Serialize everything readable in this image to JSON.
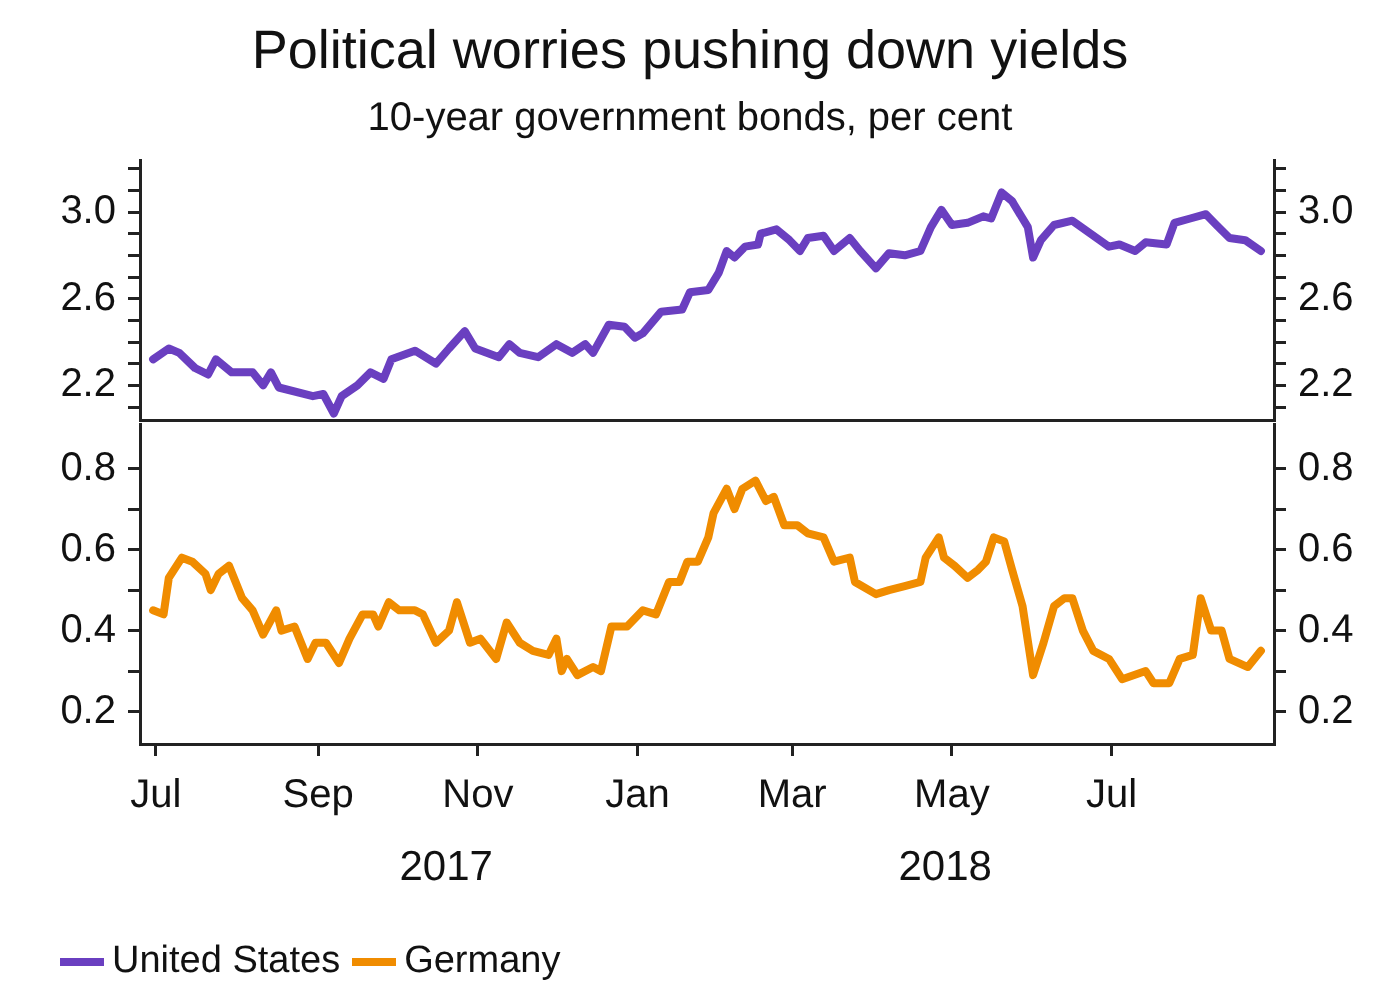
{
  "chart_data": [
    {
      "type": "line",
      "title": "Political worries pushing down yields",
      "subtitle": "10-year government bonds, per cent",
      "xlim": [
        "2017-06-25",
        "2018-09-01"
      ],
      "ylim": [
        2.04,
        3.24
      ],
      "y2lim": [
        2.04,
        3.24
      ],
      "tick_labels": "y",
      "legend": "bottom",
      "yticks": [
        {
          "value": 2.1,
          "label": null
        },
        {
          "value": 2.2,
          "label": "2.2"
        },
        {
          "value": 2.3,
          "label": null
        },
        {
          "value": 2.4,
          "label": null
        },
        {
          "value": 2.5,
          "label": null
        },
        {
          "value": 2.6,
          "label": "2.6"
        },
        {
          "value": 2.7,
          "label": null
        },
        {
          "value": 2.8,
          "label": null
        },
        {
          "value": 2.9,
          "label": null
        },
        {
          "value": 3,
          "label": "3.0"
        },
        {
          "value": 3.1,
          "label": null
        },
        {
          "value": 3.2,
          "label": null
        }
      ],
      "y2ticks": [
        {
          "value": 2.1,
          "label": null
        },
        {
          "value": 2.2,
          "label": "2.2"
        },
        {
          "value": 2.3,
          "label": null
        },
        {
          "value": 2.4,
          "label": null
        },
        {
          "value": 2.5,
          "label": null
        },
        {
          "value": 2.6,
          "label": "2.6"
        },
        {
          "value": 2.7,
          "label": null
        },
        {
          "value": 2.8,
          "label": null
        },
        {
          "value": 2.9,
          "label": null
        },
        {
          "value": 3,
          "label": "3.0"
        },
        {
          "value": 3.1,
          "label": null
        },
        {
          "value": 3.2,
          "label": null
        }
      ],
      "series": [
        {
          "name": "United States",
          "color": "#6a3fc0",
          "x": [
            "2017-06-30",
            "2017-07-06",
            "2017-07-10",
            "2017-07-16",
            "2017-07-21",
            "2017-07-24",
            "2017-07-30",
            "2017-08-07",
            "2017-08-11",
            "2017-08-14",
            "2017-08-17",
            "2017-08-30",
            "2017-09-03",
            "2017-09-07",
            "2017-09-10",
            "2017-09-16",
            "2017-09-21",
            "2017-09-26",
            "2017-09-29",
            "2017-10-08",
            "2017-10-16",
            "2017-10-21",
            "2017-10-27",
            "2017-10-31",
            "2017-11-09",
            "2017-11-13",
            "2017-11-17",
            "2017-11-24",
            "2017-12-01",
            "2017-12-07",
            "2017-12-12",
            "2017-12-15",
            "2017-12-21",
            "2017-12-27",
            "2017-12-31",
            "2018-01-03",
            "2018-01-10",
            "2018-01-18",
            "2018-01-21",
            "2018-01-28",
            "2018-02-01",
            "2018-02-04",
            "2018-02-07",
            "2018-02-11",
            "2018-02-16",
            "2018-02-17",
            "2018-02-23",
            "2018-02-28",
            "2018-03-04",
            "2018-03-07",
            "2018-03-13",
            "2018-03-17",
            "2018-03-23",
            "2018-03-27",
            "2018-04-02",
            "2018-04-07",
            "2018-04-13",
            "2018-04-19",
            "2018-04-23",
            "2018-04-27",
            "2018-05-01",
            "2018-05-07",
            "2018-05-13",
            "2018-05-16",
            "2018-05-20",
            "2018-05-24",
            "2018-05-30",
            "2018-06-01",
            "2018-06-04",
            "2018-06-09",
            "2018-06-16",
            "2018-06-23",
            "2018-06-30",
            "2018-07-04",
            "2018-07-10",
            "2018-07-14",
            "2018-07-22",
            "2018-07-25",
            "2018-07-31",
            "2018-08-06",
            "2018-08-10",
            "2018-08-15",
            "2018-08-21",
            "2018-08-27"
          ],
          "values": [
            2.32,
            2.37,
            2.35,
            2.28,
            2.25,
            2.32,
            2.26,
            2.26,
            2.2,
            2.26,
            2.19,
            2.15,
            2.16,
            2.07,
            2.15,
            2.2,
            2.26,
            2.23,
            2.32,
            2.36,
            2.3,
            2.37,
            2.45,
            2.37,
            2.33,
            2.39,
            2.35,
            2.33,
            2.39,
            2.35,
            2.39,
            2.35,
            2.48,
            2.47,
            2.42,
            2.44,
            2.54,
            2.55,
            2.63,
            2.64,
            2.72,
            2.82,
            2.79,
            2.84,
            2.85,
            2.9,
            2.92,
            2.87,
            2.82,
            2.88,
            2.89,
            2.82,
            2.88,
            2.82,
            2.74,
            2.81,
            2.8,
            2.82,
            2.93,
            3.01,
            2.94,
            2.95,
            2.98,
            2.97,
            3.09,
            3.05,
            2.93,
            2.79,
            2.87,
            2.94,
            2.96,
            2.9,
            2.84,
            2.85,
            2.82,
            2.86,
            2.85,
            2.95,
            2.97,
            2.99,
            2.94,
            2.88,
            2.87,
            2.82
          ]
        }
      ]
    },
    {
      "type": "line",
      "xlim": [
        "2017-06-25",
        "2018-09-01"
      ],
      "ylim": [
        0.12,
        0.91
      ],
      "y2lim": [
        0.12,
        0.91
      ],
      "legend": "bottom",
      "xticks": [
        {
          "value": "2017-07-01",
          "label": "Jul"
        },
        {
          "value": "2017-09-01",
          "label": "Sep"
        },
        {
          "value": "2017-11-01",
          "label": "Nov"
        },
        {
          "value": "2018-01-01",
          "label": "Jan"
        },
        {
          "value": "2018-03-01",
          "label": "Mar"
        },
        {
          "value": "2018-05-01",
          "label": "May"
        },
        {
          "value": "2018-07-01",
          "label": "Jul"
        }
      ],
      "yticks": [
        0.2,
        {
          "value": 0.3,
          "label": null
        },
        0.4,
        {
          "value": 0.5,
          "label": null
        },
        0.6,
        {
          "value": 0.7,
          "label": null
        },
        0.8
      ],
      "y2ticks": [
        0.2,
        {
          "value": 0.3,
          "label": null
        },
        0.4,
        {
          "value": 0.5,
          "label": null
        },
        0.6,
        {
          "value": 0.7,
          "label": null
        },
        0.8
      ],
      "annotations": [
        "2017",
        "2018"
      ],
      "series": [
        {
          "name": "Germany",
          "color": "#f08c00",
          "x": [
            "2017-06-30",
            "2017-07-04",
            "2017-07-06",
            "2017-07-11",
            "2017-07-15",
            "2017-07-20",
            "2017-07-22",
            "2017-07-25",
            "2017-07-29",
            "2017-08-03",
            "2017-08-07",
            "2017-08-11",
            "2017-08-16",
            "2017-08-18",
            "2017-08-23",
            "2017-08-28",
            "2017-08-31",
            "2017-09-04",
            "2017-09-09",
            "2017-09-13",
            "2017-09-18",
            "2017-09-22",
            "2017-09-24",
            "2017-09-28",
            "2017-10-02",
            "2017-10-08",
            "2017-10-11",
            "2017-10-16",
            "2017-10-21",
            "2017-10-24",
            "2017-10-29",
            "2017-11-02",
            "2017-11-08",
            "2017-11-12",
            "2017-11-17",
            "2017-11-22",
            "2017-11-28",
            "2017-12-01",
            "2017-12-03",
            "2017-12-05",
            "2017-12-09",
            "2017-12-15",
            "2017-12-18",
            "2017-12-22",
            "2017-12-28",
            "2018-01-03",
            "2018-01-08",
            "2018-01-13",
            "2018-01-17",
            "2018-01-20",
            "2018-01-24",
            "2018-01-28",
            "2018-01-30",
            "2018-02-04",
            "2018-02-07",
            "2018-02-10",
            "2018-02-15",
            "2018-02-19",
            "2018-02-22",
            "2018-02-26",
            "2018-03-03",
            "2018-03-07",
            "2018-03-13",
            "2018-03-17",
            "2018-03-23",
            "2018-03-25",
            "2018-04-02",
            "2018-04-07",
            "2018-04-13",
            "2018-04-19",
            "2018-04-21",
            "2018-04-26",
            "2018-04-28",
            "2018-05-02",
            "2018-05-07",
            "2018-05-11",
            "2018-05-14",
            "2018-05-17",
            "2018-05-21",
            "2018-05-24",
            "2018-05-28",
            "2018-06-01",
            "2018-06-05",
            "2018-06-09",
            "2018-06-13",
            "2018-06-16",
            "2018-06-20",
            "2018-06-24",
            "2018-06-30",
            "2018-07-05",
            "2018-07-14",
            "2018-07-17",
            "2018-07-23",
            "2018-07-27",
            "2018-08-01",
            "2018-08-04",
            "2018-08-08",
            "2018-08-12",
            "2018-08-15",
            "2018-08-22",
            "2018-08-27"
          ],
          "values": [
            0.45,
            0.44,
            0.53,
            0.58,
            0.57,
            0.54,
            0.5,
            0.54,
            0.56,
            0.48,
            0.45,
            0.39,
            0.45,
            0.4,
            0.41,
            0.33,
            0.37,
            0.37,
            0.32,
            0.38,
            0.44,
            0.44,
            0.41,
            0.47,
            0.45,
            0.45,
            0.44,
            0.37,
            0.4,
            0.47,
            0.37,
            0.38,
            0.33,
            0.42,
            0.37,
            0.35,
            0.34,
            0.38,
            0.3,
            0.33,
            0.29,
            0.31,
            0.3,
            0.41,
            0.41,
            0.45,
            0.44,
            0.52,
            0.52,
            0.57,
            0.57,
            0.63,
            0.69,
            0.75,
            0.7,
            0.75,
            0.77,
            0.72,
            0.73,
            0.66,
            0.66,
            0.64,
            0.63,
            0.57,
            0.58,
            0.52,
            0.49,
            0.5,
            0.51,
            0.52,
            0.58,
            0.63,
            0.58,
            0.56,
            0.53,
            0.55,
            0.57,
            0.63,
            0.62,
            0.55,
            0.46,
            0.29,
            0.37,
            0.46,
            0.48,
            0.48,
            0.4,
            0.35,
            0.33,
            0.28,
            0.3,
            0.27,
            0.27,
            0.33,
            0.34,
            0.48,
            0.4,
            0.4,
            0.33,
            0.31,
            0.35
          ]
        }
      ]
    }
  ]
}
